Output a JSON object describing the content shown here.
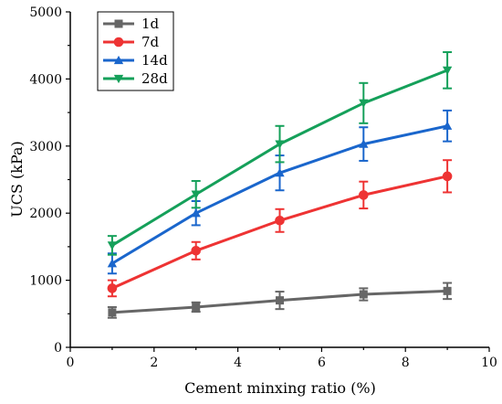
{
  "chart_data": {
    "type": "line",
    "xlabel": "Cement minxing ratio (%)",
    "ylabel": "UCS (kPa)",
    "xlim": [
      0,
      10
    ],
    "ylim": [
      0,
      5000
    ],
    "x_ticks": [
      "0",
      "2",
      "4",
      "6",
      "8",
      "10"
    ],
    "y_ticks": [
      "0",
      "1000",
      "2000",
      "3000",
      "4000",
      "5000"
    ],
    "x": [
      1,
      3,
      5,
      7,
      9
    ],
    "legend_position": "top-left",
    "grid": false,
    "series": [
      {
        "name": "1d",
        "color": "#666666",
        "marker": "square",
        "values": [
          520,
          600,
          700,
          790,
          840
        ],
        "errors": [
          80,
          70,
          130,
          90,
          120
        ]
      },
      {
        "name": "7d",
        "color": "#ee3333",
        "marker": "circle",
        "values": [
          880,
          1440,
          1890,
          2270,
          2550
        ],
        "errors": [
          120,
          130,
          170,
          200,
          240
        ]
      },
      {
        "name": "14d",
        "color": "#1a66cc",
        "marker": "triangle-up",
        "values": [
          1250,
          2000,
          2600,
          3030,
          3300
        ],
        "errors": [
          150,
          180,
          260,
          250,
          230
        ]
      },
      {
        "name": "28d",
        "color": "#15a05a",
        "marker": "triangle-down",
        "values": [
          1520,
          2280,
          3030,
          3640,
          4130
        ],
        "errors": [
          140,
          200,
          270,
          300,
          270
        ]
      }
    ]
  }
}
